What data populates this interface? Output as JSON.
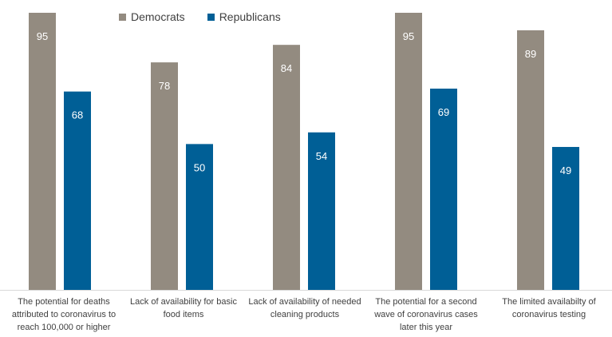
{
  "chart_data": {
    "type": "bar",
    "categories": [
      "The potential for deaths attributed to coronavirus to reach 100,000 or higher",
      "Lack of availability for basic food items",
      "Lack of availability of needed cleaning products",
      "The potential for a second wave of coronavirus cases later this year",
      "The limited availabilty of coronavirus testing"
    ],
    "series": [
      {
        "name": "Democrats",
        "color": "#938b80",
        "values": [
          95,
          78,
          84,
          95,
          89
        ]
      },
      {
        "name": "Republicans",
        "color": "#005f96",
        "values": [
          68,
          50,
          54,
          69,
          49
        ]
      }
    ],
    "ylim": [
      0,
      95
    ],
    "legend_position": "top",
    "grid": false,
    "data_labels": true
  }
}
